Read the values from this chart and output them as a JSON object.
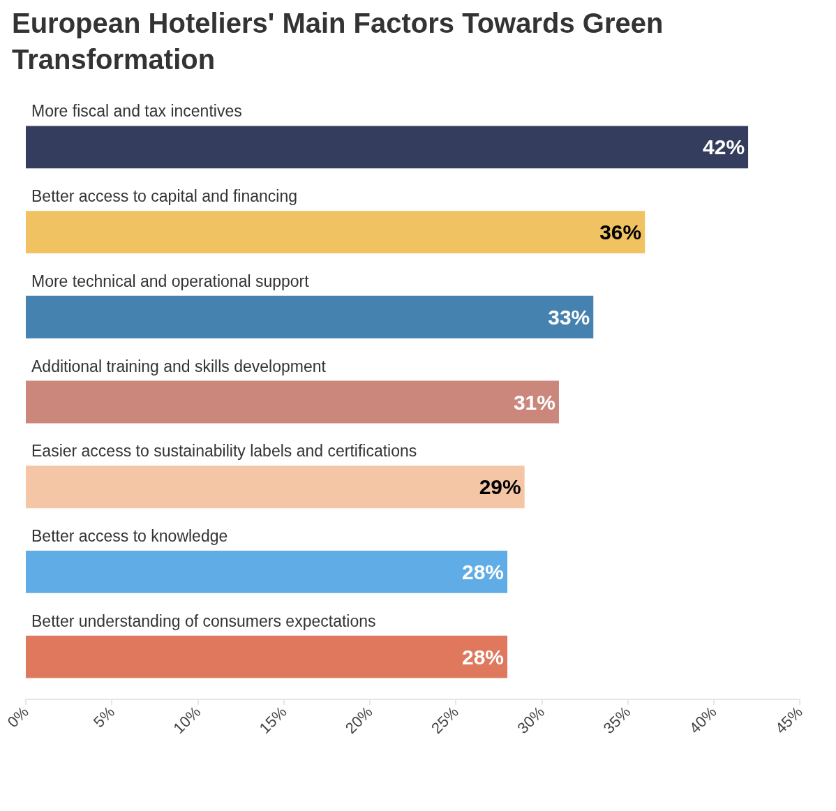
{
  "chart_data": {
    "type": "bar",
    "orientation": "horizontal",
    "title": "European Hoteliers' Main Factors Towards Green Transformation",
    "categories": [
      "More fiscal and tax incentives",
      "Better access to capital and financing",
      "More technical and operational support",
      "Additional training and skills development",
      "Easier access to sustainability labels and certifications",
      "Better access to knowledge",
      "Better understanding of consumers expectations"
    ],
    "values": [
      42,
      36,
      33,
      31,
      29,
      28,
      28
    ],
    "value_labels": [
      "42%",
      "36%",
      "33%",
      "31%",
      "29%",
      "28%",
      "28%"
    ],
    "colors": [
      "#353d5e",
      "#f1c262",
      "#4682b0",
      "#cb877c",
      "#f5c6a6",
      "#60ace6",
      "#df785c"
    ],
    "xlim": [
      0,
      45
    ],
    "xticks": [
      {
        "value": 0,
        "label": "0%"
      },
      {
        "value": 5,
        "label": "5%"
      },
      {
        "value": 10,
        "label": "10%"
      },
      {
        "value": 15,
        "label": "15%"
      },
      {
        "value": 20,
        "label": "20%"
      },
      {
        "value": 25,
        "label": "25%"
      },
      {
        "value": 30,
        "label": "30%"
      },
      {
        "value": 35,
        "label": "35%"
      },
      {
        "value": 40,
        "label": "40%"
      },
      {
        "value": 45,
        "label": "45%"
      }
    ],
    "grid": false
  }
}
